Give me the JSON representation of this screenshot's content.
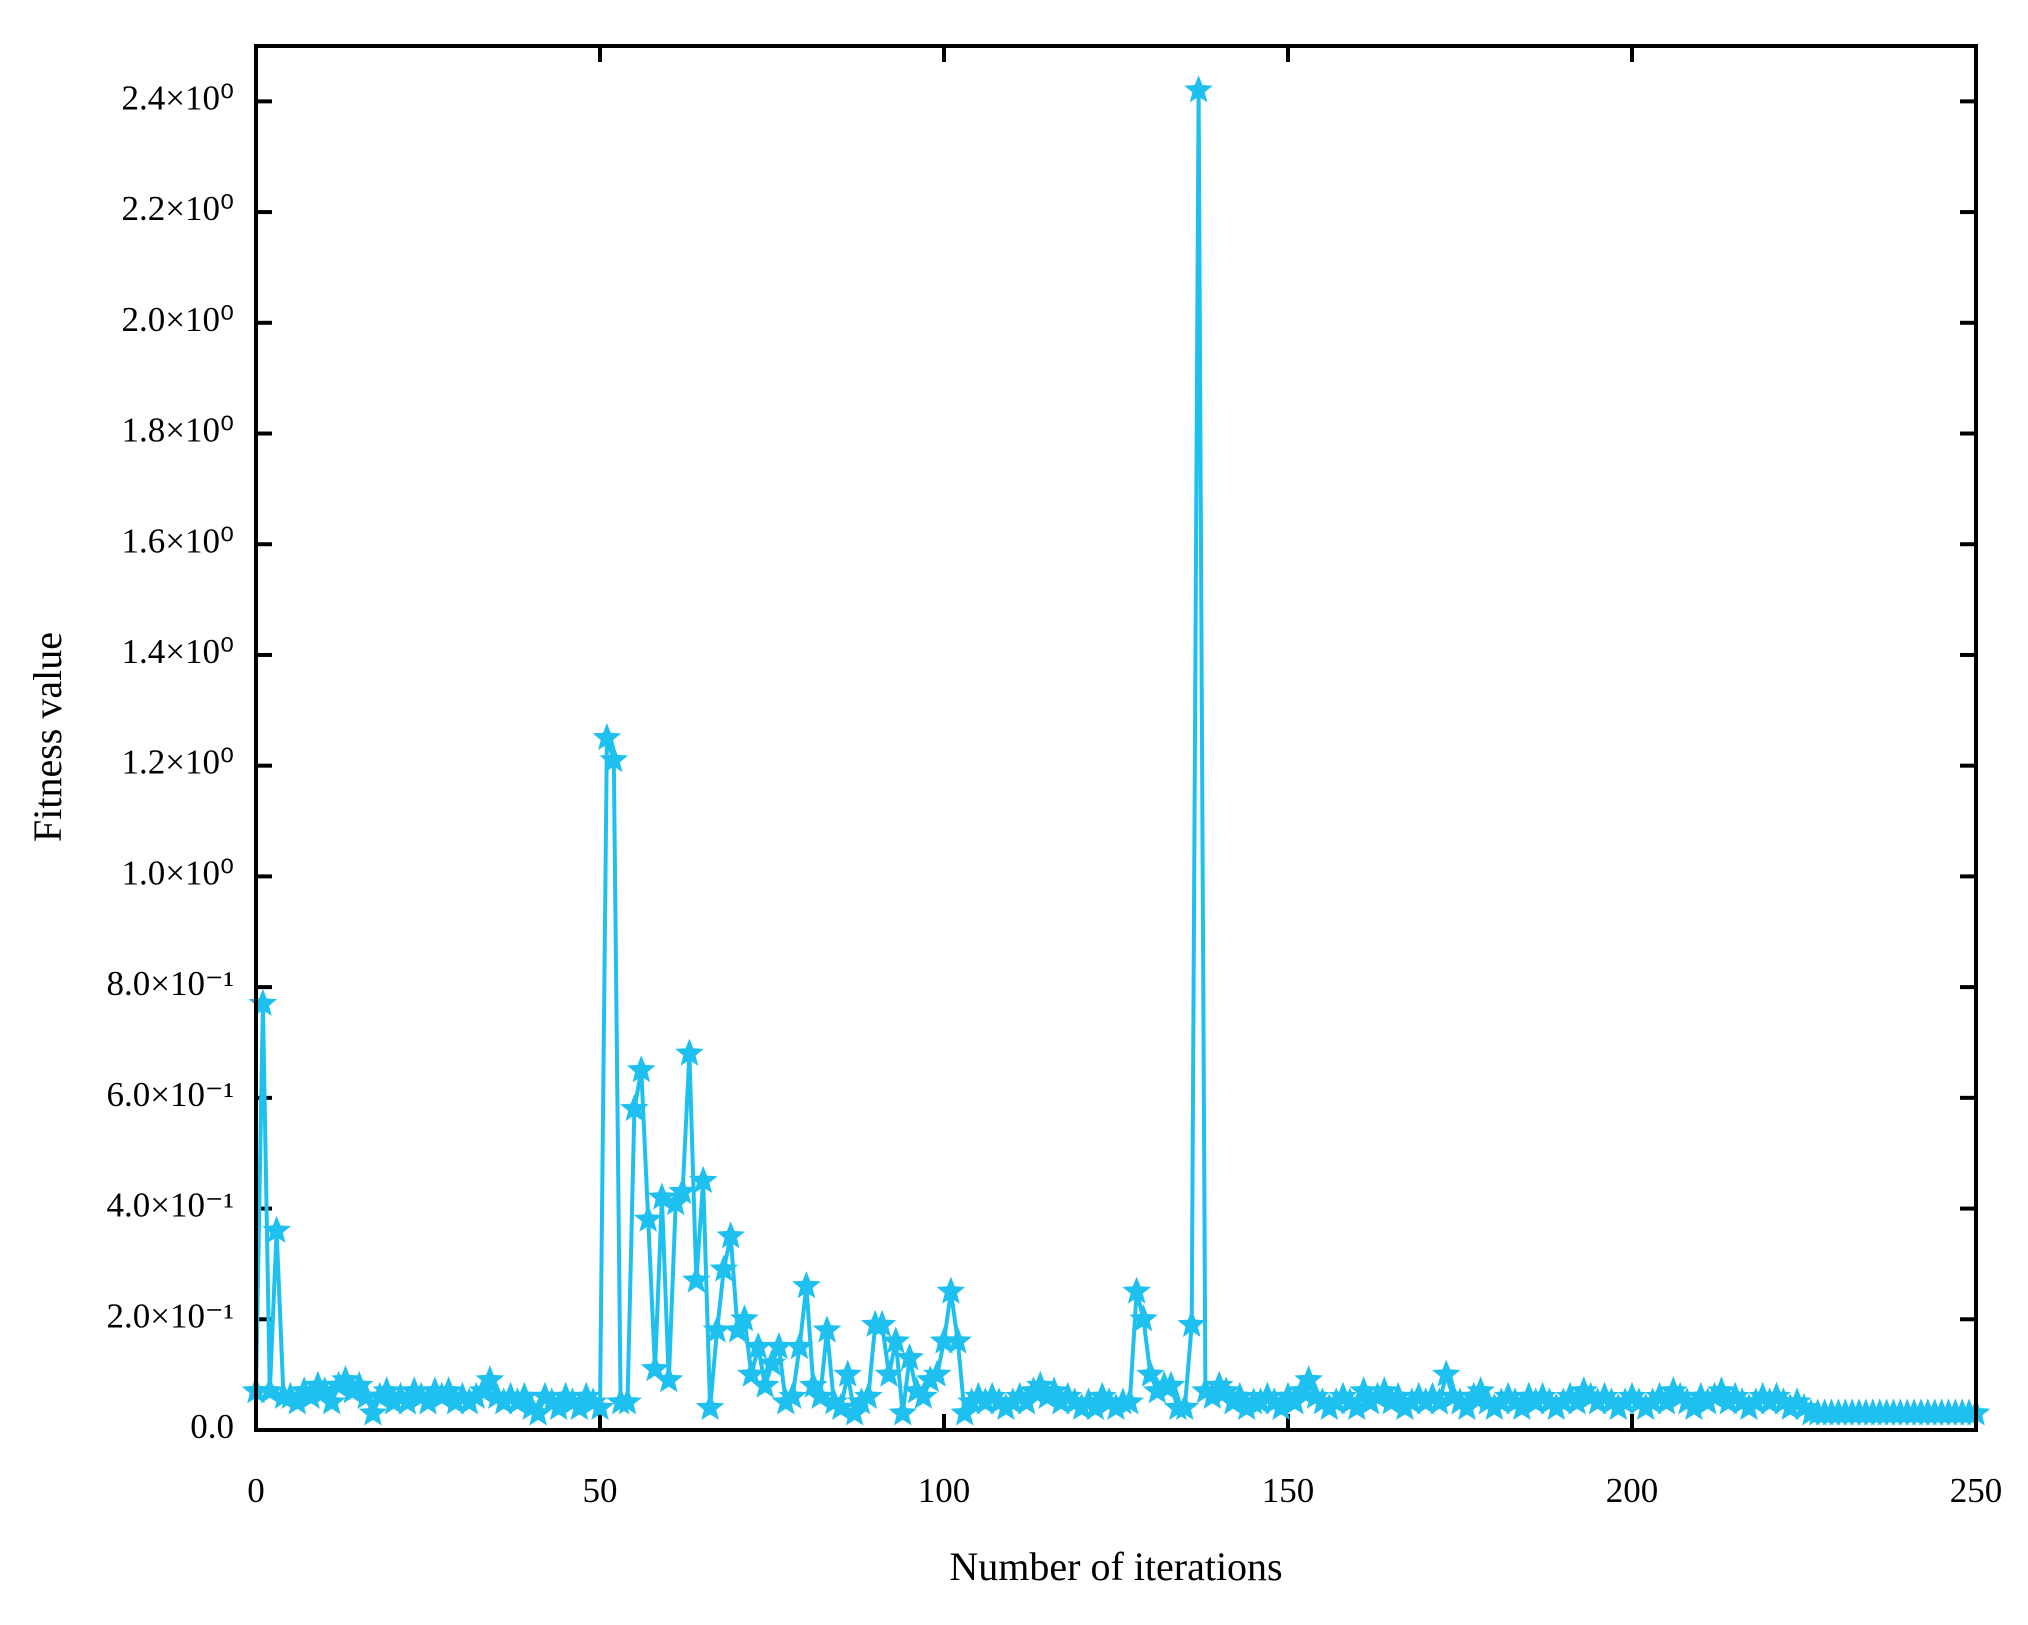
{
  "chart_data": {
    "type": "line",
    "x_label": "Number of iterations",
    "y_label": "Fitness value",
    "color": "#1ec0f0",
    "marker": "star",
    "xlim": [
      0,
      250
    ],
    "xticks": [
      0,
      50,
      100,
      150,
      200,
      250
    ],
    "ylim": [
      0,
      2.5
    ],
    "yticks": [
      {
        "value": 0,
        "label": "0.0"
      },
      {
        "value": 0.2,
        "label": "2.0×10⁻¹"
      },
      {
        "value": 0.4,
        "label": "4.0×10⁻¹"
      },
      {
        "value": 0.6,
        "label": "6.0×10⁻¹"
      },
      {
        "value": 0.8,
        "label": "8.0×10⁻¹"
      },
      {
        "value": 1.0,
        "label": "1.0×10⁰"
      },
      {
        "value": 1.2,
        "label": "1.2×10⁰"
      },
      {
        "value": 1.4,
        "label": "1.4×10⁰"
      },
      {
        "value": 1.6,
        "label": "1.6×10⁰"
      },
      {
        "value": 1.8,
        "label": "1.8×10⁰"
      },
      {
        "value": 2.0,
        "label": "2.0×10⁰"
      },
      {
        "value": 2.2,
        "label": "2.2×10⁰"
      },
      {
        "value": 2.4,
        "label": "2.4×10⁰"
      }
    ],
    "x": [
      0,
      1,
      2,
      3,
      4,
      5,
      6,
      7,
      8,
      9,
      10,
      11,
      12,
      13,
      14,
      15,
      16,
      17,
      18,
      19,
      20,
      21,
      22,
      23,
      24,
      25,
      26,
      27,
      28,
      29,
      30,
      31,
      32,
      33,
      34,
      35,
      36,
      37,
      38,
      39,
      40,
      41,
      42,
      43,
      44,
      45,
      46,
      47,
      48,
      49,
      50,
      51,
      52,
      53,
      54,
      55,
      56,
      57,
      58,
      59,
      60,
      61,
      62,
      63,
      64,
      65,
      66,
      67,
      68,
      69,
      70,
      71,
      72,
      73,
      74,
      75,
      76,
      77,
      78,
      79,
      80,
      81,
      82,
      83,
      84,
      85,
      86,
      87,
      88,
      89,
      90,
      91,
      92,
      93,
      94,
      95,
      96,
      97,
      98,
      99,
      100,
      101,
      102,
      103,
      104,
      105,
      106,
      107,
      108,
      109,
      110,
      111,
      112,
      113,
      114,
      115,
      116,
      117,
      118,
      119,
      120,
      121,
      122,
      123,
      124,
      125,
      126,
      127,
      128,
      129,
      130,
      131,
      132,
      133,
      134,
      135,
      136,
      137,
      138,
      139,
      140,
      141,
      142,
      143,
      144,
      145,
      146,
      147,
      148,
      149,
      150,
      151,
      152,
      153,
      154,
      155,
      156,
      157,
      158,
      159,
      160,
      161,
      162,
      163,
      164,
      165,
      166,
      167,
      168,
      169,
      170,
      171,
      172,
      173,
      174,
      175,
      176,
      177,
      178,
      179,
      180,
      181,
      182,
      183,
      184,
      185,
      186,
      187,
      188,
      189,
      190,
      191,
      192,
      193,
      194,
      195,
      196,
      197,
      198,
      199,
      200,
      201,
      202,
      203,
      204,
      205,
      206,
      207,
      208,
      209,
      210,
      211,
      212,
      213,
      214,
      215,
      216,
      217,
      218,
      219,
      220,
      221,
      222,
      223,
      224,
      225,
      226,
      227,
      228,
      229,
      230,
      231,
      232,
      233,
      234,
      235,
      236,
      237,
      238,
      239,
      240,
      241,
      242,
      243,
      244,
      245,
      246,
      247,
      248,
      249,
      250
    ],
    "values": [
      0.07,
      0.77,
      0.07,
      0.36,
      0.06,
      0.06,
      0.05,
      0.07,
      0.06,
      0.08,
      0.07,
      0.05,
      0.08,
      0.09,
      0.07,
      0.08,
      0.06,
      0.03,
      0.06,
      0.07,
      0.05,
      0.06,
      0.05,
      0.07,
      0.06,
      0.05,
      0.07,
      0.06,
      0.07,
      0.05,
      0.06,
      0.05,
      0.06,
      0.07,
      0.09,
      0.06,
      0.05,
      0.06,
      0.05,
      0.06,
      0.04,
      0.03,
      0.06,
      0.05,
      0.04,
      0.06,
      0.05,
      0.04,
      0.06,
      0.05,
      0.04,
      1.25,
      1.21,
      0.05,
      0.05,
      0.58,
      0.65,
      0.38,
      0.11,
      0.42,
      0.09,
      0.41,
      0.43,
      0.68,
      0.27,
      0.45,
      0.04,
      0.18,
      0.29,
      0.35,
      0.18,
      0.2,
      0.1,
      0.15,
      0.08,
      0.12,
      0.15,
      0.05,
      0.06,
      0.15,
      0.26,
      0.08,
      0.06,
      0.18,
      0.05,
      0.04,
      0.1,
      0.03,
      0.05,
      0.06,
      0.19,
      0.19,
      0.1,
      0.16,
      0.03,
      0.13,
      0.07,
      0.06,
      0.09,
      0.1,
      0.16,
      0.25,
      0.16,
      0.03,
      0.05,
      0.06,
      0.05,
      0.06,
      0.05,
      0.04,
      0.05,
      0.06,
      0.05,
      0.07,
      0.08,
      0.06,
      0.07,
      0.05,
      0.06,
      0.05,
      0.04,
      0.05,
      0.04,
      0.06,
      0.05,
      0.04,
      0.05,
      0.05,
      0.25,
      0.2,
      0.1,
      0.07,
      0.08,
      0.08,
      0.04,
      0.04,
      0.19,
      2.42,
      0.07,
      0.06,
      0.08,
      0.07,
      0.05,
      0.06,
      0.04,
      0.05,
      0.05,
      0.06,
      0.05,
      0.04,
      0.06,
      0.05,
      0.07,
      0.09,
      0.06,
      0.05,
      0.04,
      0.05,
      0.06,
      0.05,
      0.04,
      0.07,
      0.05,
      0.06,
      0.07,
      0.05,
      0.06,
      0.04,
      0.05,
      0.06,
      0.05,
      0.06,
      0.05,
      0.1,
      0.06,
      0.05,
      0.04,
      0.06,
      0.07,
      0.05,
      0.04,
      0.05,
      0.06,
      0.05,
      0.04,
      0.06,
      0.05,
      0.06,
      0.05,
      0.04,
      0.05,
      0.06,
      0.05,
      0.07,
      0.06,
      0.05,
      0.06,
      0.05,
      0.04,
      0.05,
      0.06,
      0.05,
      0.04,
      0.05,
      0.06,
      0.05,
      0.07,
      0.06,
      0.05,
      0.04,
      0.06,
      0.05,
      0.06,
      0.07,
      0.05,
      0.06,
      0.05,
      0.04,
      0.05,
      0.06,
      0.05,
      0.06,
      0.05,
      0.04,
      0.05,
      0.04,
      0.03,
      0.03,
      0.03,
      0.03,
      0.03,
      0.03,
      0.03,
      0.03,
      0.03,
      0.03,
      0.03,
      0.03,
      0.03,
      0.03,
      0.03,
      0.03,
      0.03,
      0.03,
      0.03,
      0.03,
      0.03,
      0.03,
      0.03,
      0.03,
      0.03
    ]
  }
}
